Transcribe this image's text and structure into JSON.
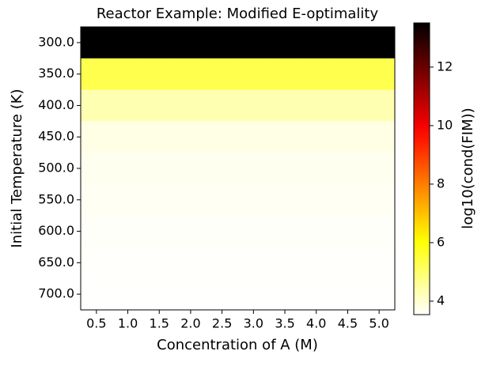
{
  "chart_data": {
    "type": "heatmap",
    "title": "Reactor Example: Modified E-optimality",
    "xlabel": "Concentration of A (M)",
    "ylabel": "Initial Temperature (K)",
    "x": [
      "0.5",
      "1.0",
      "1.5",
      "2.0",
      "2.5",
      "3.0",
      "3.5",
      "4.0",
      "4.5",
      "5.0"
    ],
    "y": [
      "300.0",
      "350.0",
      "400.0",
      "450.0",
      "500.0",
      "550.0",
      "600.0",
      "650.0",
      "700.0"
    ],
    "z": [
      [
        13.5,
        13.5,
        13.5,
        13.5,
        13.5,
        13.5,
        13.5,
        13.5,
        13.5,
        13.5
      ],
      [
        5.3,
        5.3,
        5.3,
        5.3,
        5.3,
        5.3,
        5.3,
        5.3,
        5.3,
        5.3
      ],
      [
        4.3,
        4.3,
        4.3,
        4.3,
        4.3,
        4.3,
        4.3,
        4.3,
        4.3,
        4.3
      ],
      [
        3.8,
        3.8,
        3.8,
        3.8,
        3.8,
        3.8,
        3.8,
        3.8,
        3.8,
        3.8
      ],
      [
        3.7,
        3.7,
        3.7,
        3.7,
        3.7,
        3.7,
        3.7,
        3.7,
        3.7,
        3.7
      ],
      [
        3.65,
        3.65,
        3.65,
        3.65,
        3.65,
        3.65,
        3.65,
        3.65,
        3.65,
        3.65
      ],
      [
        3.6,
        3.6,
        3.6,
        3.6,
        3.6,
        3.6,
        3.6,
        3.6,
        3.6,
        3.6
      ],
      [
        3.57,
        3.57,
        3.57,
        3.57,
        3.57,
        3.57,
        3.57,
        3.57,
        3.57,
        3.57
      ],
      [
        3.55,
        3.55,
        3.55,
        3.55,
        3.55,
        3.55,
        3.55,
        3.55,
        3.55,
        3.55
      ]
    ],
    "colormap": "hot_r",
    "colorbar_label": "log10(cond(FIM))",
    "clim": [
      3.54,
      13.51
    ],
    "cticks": [
      4,
      6,
      8,
      10,
      12
    ]
  }
}
